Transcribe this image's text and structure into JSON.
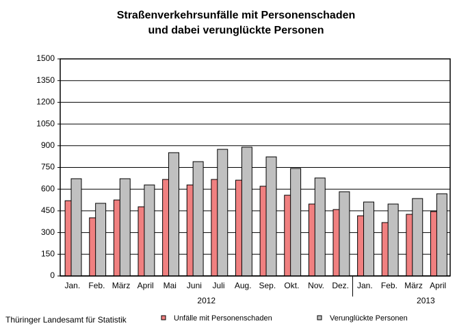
{
  "chart_data": {
    "type": "bar",
    "title": [
      "Straßenverkehrsunfälle mit Personenschaden",
      "und dabei verunglückte Personen"
    ],
    "groups": [
      {
        "label": "2012",
        "categories": [
          "Jan.",
          "Feb.",
          "März",
          "April",
          "Mai",
          "Juni",
          "Juli",
          "Aug.",
          "Sep.",
          "Okt.",
          "Nov.",
          "Dez."
        ]
      },
      {
        "label": "2013",
        "categories": [
          "Jan.",
          "Feb.",
          "März",
          "April"
        ]
      }
    ],
    "series": [
      {
        "name": "Unfälle mit Personenschaden",
        "color": "#f08080",
        "values": [
          520,
          402,
          525,
          478,
          667,
          629,
          667,
          662,
          620,
          558,
          497,
          459,
          416,
          369,
          426,
          445
        ]
      },
      {
        "name": "Verunglückte Personen",
        "color": "#c0c0c0",
        "values": [
          672,
          502,
          672,
          629,
          852,
          790,
          875,
          890,
          823,
          743,
          677,
          582,
          511,
          497,
          535,
          568
        ]
      }
    ],
    "ylim": [
      0,
      1500
    ],
    "yticks": [
      0,
      150,
      300,
      450,
      600,
      750,
      900,
      1050,
      1200,
      1350,
      1500
    ],
    "grid": true,
    "legend": "bottom",
    "source": "Thüringer Landesamt für Statistik"
  }
}
